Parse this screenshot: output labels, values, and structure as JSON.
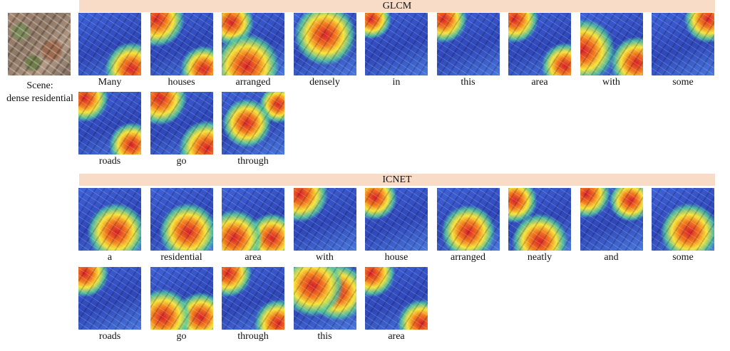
{
  "scene": {
    "label_line1": "Scene:",
    "label_line2": "dense residential"
  },
  "glcm": {
    "title": "GLCM",
    "rows": [
      [
        {
          "word": "Many",
          "hot": [
            [
              0.85,
              0.9,
              0.35
            ]
          ]
        },
        {
          "word": "houses",
          "hot": [
            [
              0.1,
              0.1,
              0.35
            ],
            [
              0.85,
              0.9,
              0.3
            ]
          ]
        },
        {
          "word": "arranged",
          "hot": [
            [
              0.4,
              0.85,
              0.5
            ],
            [
              0.15,
              0.15,
              0.3
            ]
          ]
        },
        {
          "word": "densely",
          "hot": [
            [
              0.5,
              0.35,
              0.6
            ]
          ]
        },
        {
          "word": "in",
          "hot": [
            [
              0.1,
              0.1,
              0.25
            ]
          ]
        },
        {
          "word": "this",
          "hot": [
            [
              0.1,
              0.1,
              0.3
            ]
          ]
        },
        {
          "word": "area",
          "hot": [
            [
              0.1,
              0.1,
              0.3
            ],
            [
              0.9,
              0.85,
              0.3
            ]
          ]
        },
        {
          "word": "with",
          "hot": [
            [
              0.05,
              0.6,
              0.45
            ],
            [
              0.9,
              0.8,
              0.35
            ]
          ]
        },
        {
          "word": "some",
          "hot": [
            [
              0.9,
              0.1,
              0.3
            ]
          ]
        }
      ],
      [
        {
          "word": "roads",
          "hot": [
            [
              0.1,
              0.1,
              0.3
            ],
            [
              0.85,
              0.85,
              0.3
            ]
          ]
        },
        {
          "word": "go",
          "hot": [
            [
              0.15,
              0.1,
              0.35
            ],
            [
              0.9,
              0.9,
              0.35
            ]
          ]
        },
        {
          "word": "through",
          "hot": [
            [
              0.4,
              0.5,
              0.5
            ],
            [
              0.9,
              0.2,
              0.25
            ]
          ]
        }
      ]
    ]
  },
  "icnet": {
    "title": "ICNET",
    "rows": [
      [
        {
          "word": "a",
          "hot": [
            [
              0.6,
              0.7,
              0.5
            ]
          ]
        },
        {
          "word": "residential",
          "hot": [
            [
              0.6,
              0.7,
              0.5
            ]
          ]
        },
        {
          "word": "area",
          "hot": [
            [
              0.2,
              0.8,
              0.4
            ],
            [
              0.8,
              0.8,
              0.35
            ]
          ]
        },
        {
          "word": "with",
          "hot": [
            [
              0.1,
              0.1,
              0.35
            ]
          ]
        },
        {
          "word": "house",
          "hot": [
            [
              0.15,
              0.15,
              0.3
            ]
          ]
        },
        {
          "word": "arranged",
          "hot": [
            [
              0.5,
              0.7,
              0.5
            ]
          ]
        },
        {
          "word": "neatly",
          "hot": [
            [
              0.5,
              0.85,
              0.45
            ],
            [
              0.1,
              0.2,
              0.3
            ]
          ]
        },
        {
          "word": "and",
          "hot": [
            [
              0.1,
              0.1,
              0.3
            ],
            [
              0.8,
              0.2,
              0.3
            ]
          ]
        },
        {
          "word": "some",
          "hot": [
            [
              0.6,
              0.7,
              0.5
            ]
          ]
        }
      ],
      [
        {
          "word": "roads",
          "hot": [
            [
              0.1,
              0.1,
              0.3
            ]
          ]
        },
        {
          "word": "go",
          "hot": [
            [
              0.2,
              0.8,
              0.4
            ],
            [
              0.8,
              0.8,
              0.35
            ]
          ]
        },
        {
          "word": "through",
          "hot": [
            [
              0.1,
              0.1,
              0.3
            ],
            [
              0.9,
              0.9,
              0.3
            ]
          ]
        },
        {
          "word": "this",
          "hot": [
            [
              0.3,
              0.3,
              0.5
            ],
            [
              0.7,
              0.4,
              0.5
            ]
          ]
        },
        {
          "word": "area",
          "hot": [
            [
              0.1,
              0.1,
              0.3
            ],
            [
              0.9,
              0.9,
              0.3
            ]
          ]
        }
      ]
    ]
  }
}
